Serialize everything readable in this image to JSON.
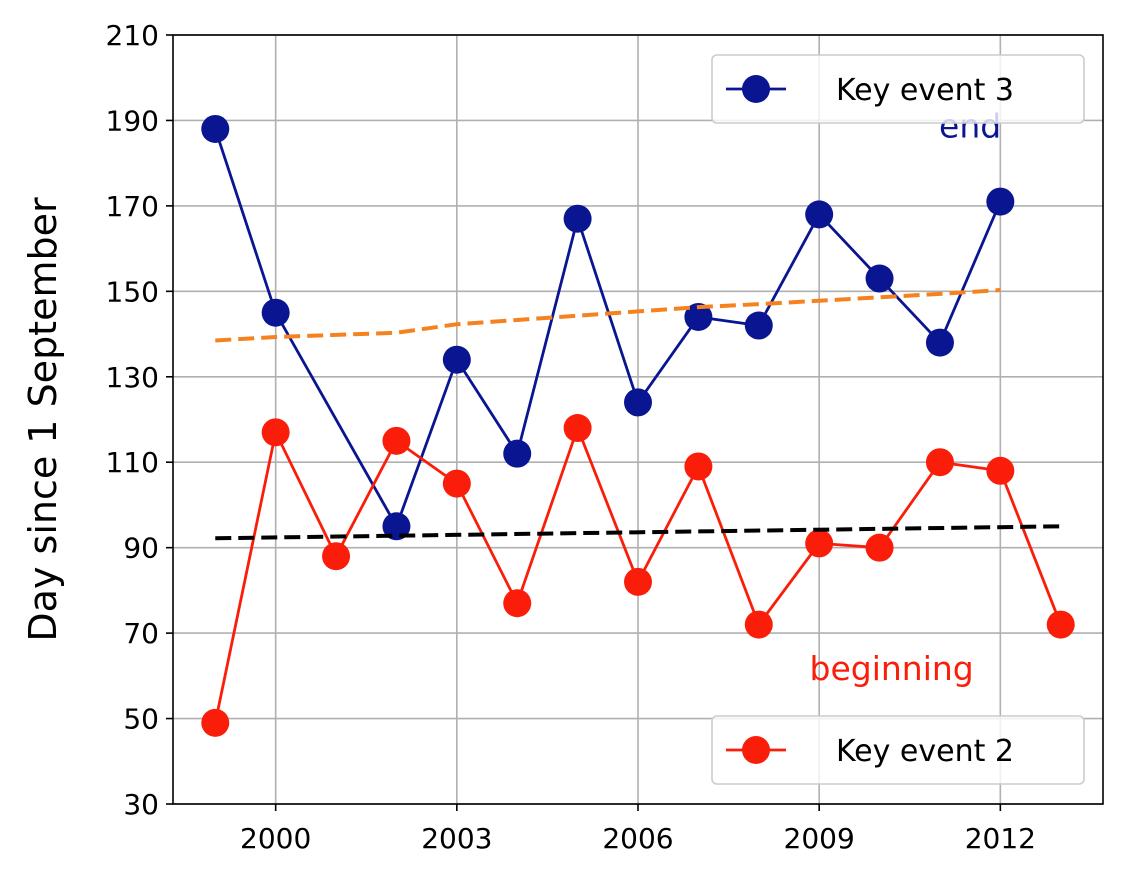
{
  "chart_data": {
    "type": "line",
    "title": "",
    "xlabel": "",
    "ylabel": "Day since 1 September",
    "xlim": [
      1998.3,
      2013.7
    ],
    "ylim": [
      30,
      210
    ],
    "x_ticks": [
      2000,
      2003,
      2006,
      2009,
      2012
    ],
    "y_ticks": [
      30,
      50,
      70,
      90,
      110,
      130,
      150,
      170,
      190,
      210
    ],
    "grid": true,
    "series": [
      {
        "name": "Key event 3",
        "color": "#0a1592",
        "marker": "circle",
        "x": [
          1999,
          2000,
          2002,
          2003,
          2004,
          2005,
          2006,
          2007,
          2008,
          2009,
          2010,
          2011,
          2012
        ],
        "y": [
          188,
          145,
          95,
          134,
          112,
          167,
          124,
          144,
          142,
          168,
          153,
          138,
          171
        ]
      },
      {
        "name": "Key event 2",
        "color": "#fa1e0a",
        "marker": "circle",
        "x": [
          1999,
          2000,
          2001,
          2002,
          2003,
          2004,
          2005,
          2006,
          2007,
          2008,
          2009,
          2010,
          2011,
          2012,
          2013
        ],
        "y": [
          49,
          117,
          88,
          115,
          105,
          77,
          118,
          82,
          109,
          72,
          91,
          90,
          110,
          108,
          72
        ]
      },
      {
        "color": "#f5821e",
        "style": "dashed",
        "x": [
          1999,
          2000,
          2001,
          2002,
          2003,
          2004,
          2005,
          2006,
          2007,
          2008,
          2009,
          2010,
          2011,
          2012
        ],
        "y": [
          138.5,
          139.3,
          139.8,
          140.3,
          142.3,
          143.3,
          144.3,
          145.3,
          146.3,
          147.0,
          147.8,
          148.6,
          149.4,
          150.3
        ]
      },
      {
        "color": "#000000",
        "style": "dashed",
        "x": [
          1999,
          2013
        ],
        "y": [
          92.2,
          95.0
        ]
      }
    ],
    "annotations": [
      {
        "text": "end",
        "x": 2011.5,
        "y": 186,
        "color": "#0a1592"
      },
      {
        "text": "beginning",
        "x": 2010.2,
        "y": 59,
        "color": "#fa1e0a"
      }
    ],
    "legends": [
      {
        "series": "Key event 3",
        "placement": "upper right"
      },
      {
        "series": "Key event 2",
        "placement": "lower right"
      }
    ]
  }
}
